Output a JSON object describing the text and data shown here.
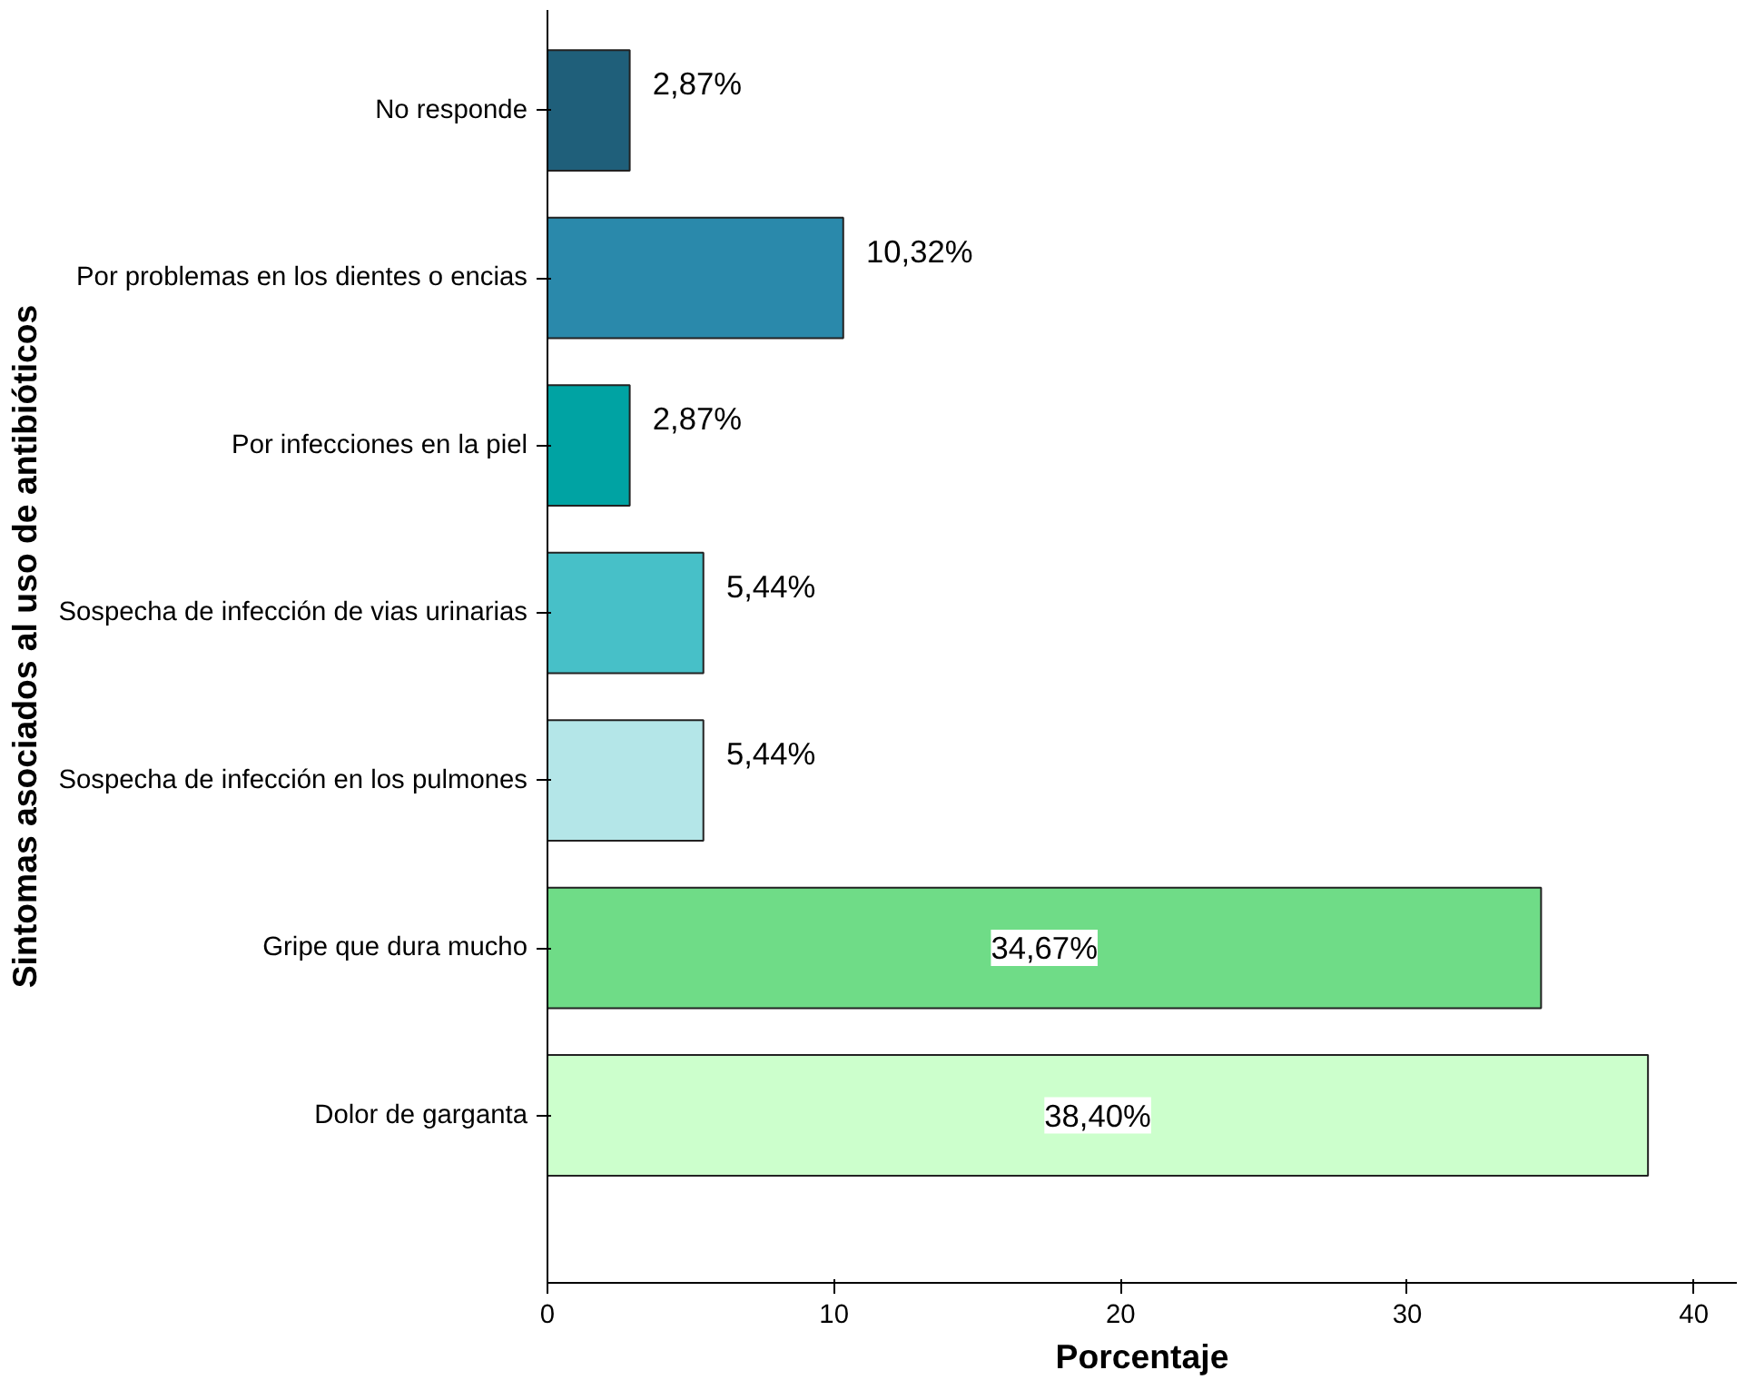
{
  "chart_data": {
    "type": "bar",
    "orientation": "horizontal",
    "xlabel": "Porcentaje",
    "ylabel": "Sintomas asociados al uso de antibióticos",
    "categories": [
      "No responde",
      "Por problemas en los dientes o encias",
      "Por infecciones en la piel",
      "Sospecha de infección de vias urinarias",
      "Sospecha de infección en los pulmones",
      "Gripe que dura mucho",
      "Dolor de garganta"
    ],
    "values": [
      2.87,
      10.32,
      2.87,
      5.44,
      5.44,
      34.67,
      38.4
    ],
    "colors": [
      "#1f5f7a",
      "#2a89ab",
      "#00a3a3",
      "#47c0c8",
      "#b4e6e8",
      "#6fdc87",
      "#ccffcc"
    ],
    "value_labels": [
      "2,87%",
      "10,32%",
      "2,87%",
      "5,44%",
      "5,44%",
      "34,67%",
      "38,40%"
    ],
    "xlim": [
      0,
      41.5
    ],
    "xticks": [
      0,
      10,
      20,
      30,
      40
    ],
    "grid": false
  }
}
